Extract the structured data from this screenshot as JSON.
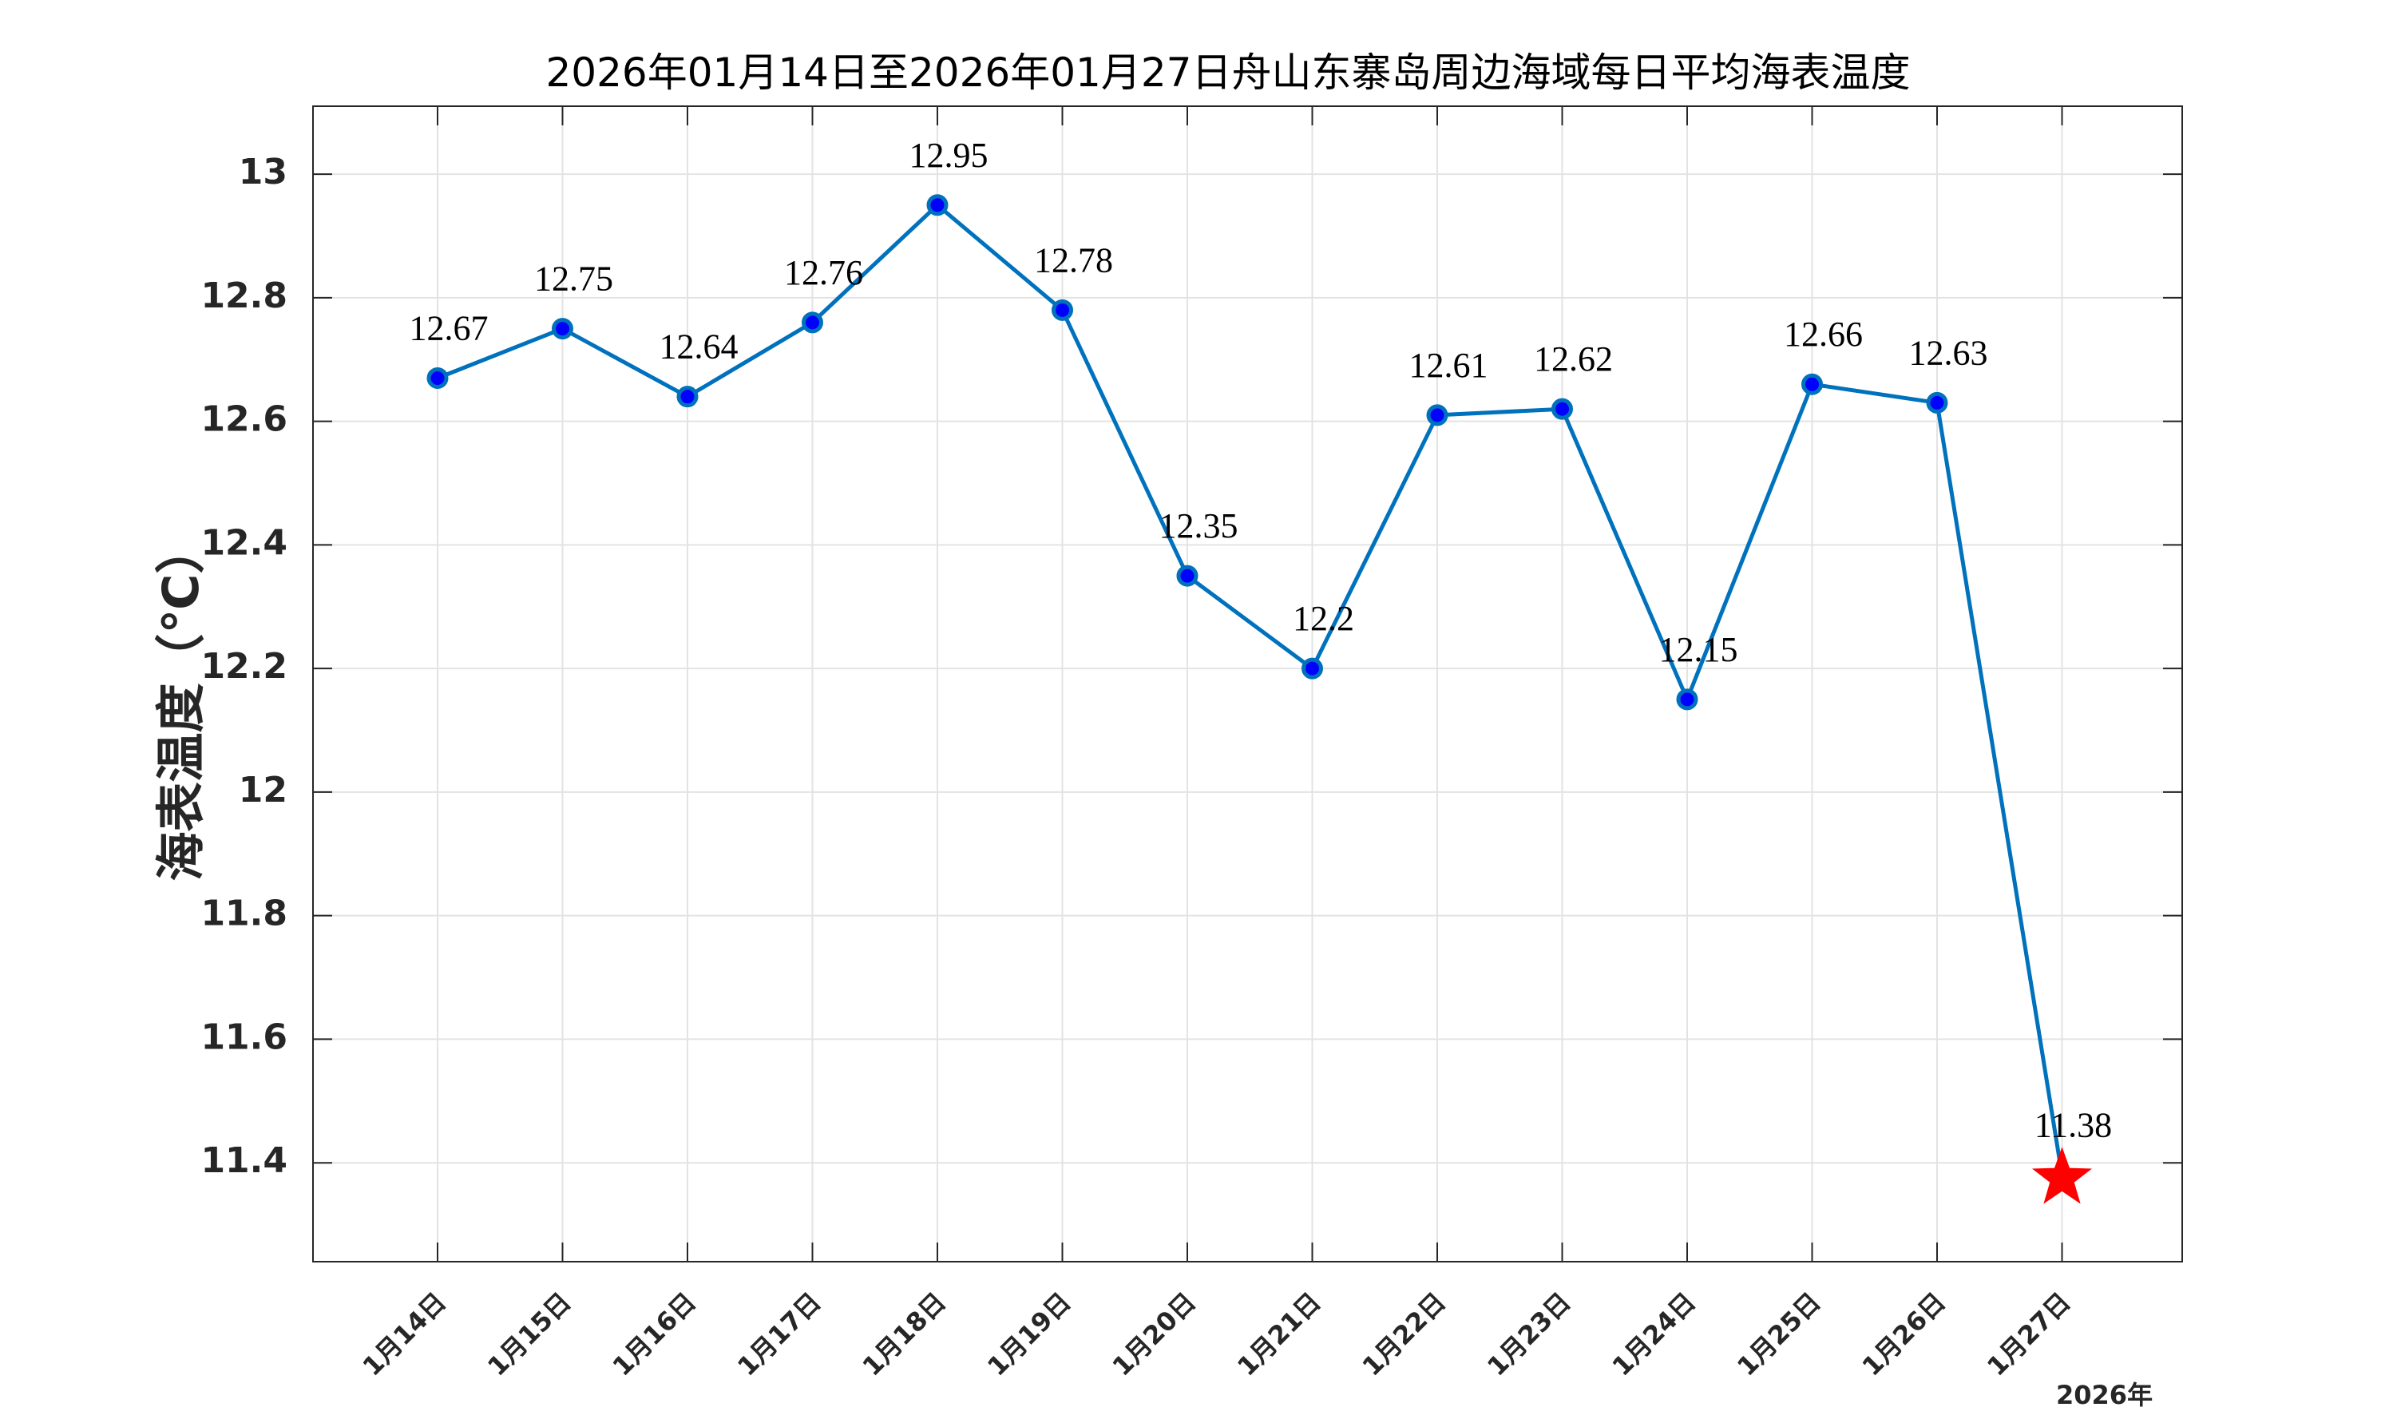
{
  "chart_data": {
    "type": "line",
    "title": "2026年01月14日至2026年01月27日舟山东寨岛周边海域每日平均海表温度",
    "ylabel": "海表温度（℃）",
    "xlabel": "",
    "year_label": "2026年",
    "categories": [
      "1月14日",
      "1月15日",
      "1月16日",
      "1月17日",
      "1月18日",
      "1月19日",
      "1月20日",
      "1月21日",
      "1月22日",
      "1月23日",
      "1月24日",
      "1月25日",
      "1月26日",
      "1月27日"
    ],
    "values": [
      12.67,
      12.75,
      12.64,
      12.76,
      12.95,
      12.78,
      12.35,
      12.2,
      12.61,
      12.62,
      12.15,
      12.66,
      12.63,
      11.38
    ],
    "value_labels": [
      "12.67",
      "12.75",
      "12.64",
      "12.76",
      "12.95",
      "12.78",
      "12.35",
      "12.2",
      "12.61",
      "12.62",
      "12.15",
      "12.66",
      "12.63",
      "11.38"
    ],
    "ylim": [
      11.24,
      13.11
    ],
    "yticks": [
      11.4,
      11.6,
      11.8,
      12,
      12.2,
      12.4,
      12.6,
      12.8,
      13
    ],
    "ytick_labels": [
      "11.4",
      "11.6",
      "11.8",
      "12",
      "12.2",
      "12.4",
      "12.6",
      "12.8",
      "13"
    ],
    "grid": true,
    "line_color": "#0072BD",
    "marker_color": "#0000FF",
    "highlight_color": "#FF0000",
    "highlight_marker": "star-icon",
    "highlight_index": 13
  }
}
